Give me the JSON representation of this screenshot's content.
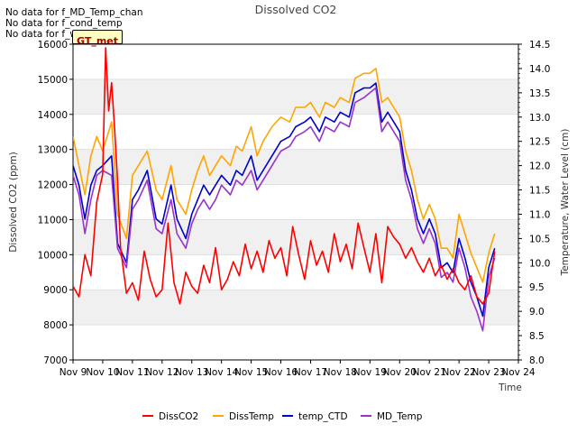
{
  "notes": [
    "No data for f_MD_Temp_chan",
    "No data for f_cond_temp",
    "No data for f_waterT"
  ],
  "badge": {
    "label": "GT_met",
    "bg": "#ffffc0",
    "fg": "#aa0000"
  },
  "chart_data": {
    "type": "line",
    "title": "Dissolved CO2",
    "xlabel": "Time",
    "ylabel_left": "Dissolved CO2 (ppm)",
    "ylabel_right": "Temperature, Water Level (cm)",
    "x_range": [
      9,
      24
    ],
    "x_tick_values": [
      9,
      10,
      11,
      12,
      13,
      14,
      15,
      16,
      17,
      18,
      19,
      20,
      21,
      22,
      23,
      24
    ],
    "x_tick_labels": [
      "Nov 9",
      "Nov 10",
      "Nov 11",
      "Nov 12",
      "Nov 13",
      "Nov 14",
      "Nov 15",
      "Nov 16",
      "Nov 17",
      "Nov 18",
      "Nov 19",
      "Nov 20",
      "Nov 21",
      "Nov 22",
      "Nov 23",
      "Nov 24"
    ],
    "y_left_range": [
      7000,
      16000
    ],
    "y_left_ticks": [
      7000,
      8000,
      9000,
      10000,
      11000,
      12000,
      13000,
      14000,
      15000,
      16000
    ],
    "y_right_range": [
      8.0,
      14.5
    ],
    "y_right_ticks": [
      "8.0",
      "8.5",
      "9.0",
      "9.5",
      "10.0",
      "10.5",
      "11.0",
      "11.5",
      "12.0",
      "12.5",
      "13.0",
      "13.5",
      "14.0",
      "14.5"
    ],
    "grid": "horizontal bands",
    "legend_position": "bottom",
    "series": [
      {
        "name": "DissCO2",
        "axis": "left",
        "color": "#ff0000",
        "x": [
          9.0,
          9.2,
          9.4,
          9.6,
          9.8,
          10.0,
          10.1,
          10.2,
          10.3,
          10.4,
          10.5,
          10.6,
          10.8,
          11.0,
          11.2,
          11.4,
          11.6,
          11.8,
          12.0,
          12.2,
          12.4,
          12.6,
          12.8,
          13.0,
          13.2,
          13.4,
          13.6,
          13.8,
          14.0,
          14.2,
          14.4,
          14.6,
          14.8,
          15.0,
          15.2,
          15.4,
          15.6,
          15.8,
          16.0,
          16.2,
          16.4,
          16.6,
          16.8,
          17.0,
          17.2,
          17.4,
          17.6,
          17.8,
          18.0,
          18.2,
          18.4,
          18.6,
          18.8,
          19.0,
          19.2,
          19.4,
          19.6,
          19.8,
          20.0,
          20.2,
          20.4,
          20.6,
          20.8,
          21.0,
          21.2,
          21.4,
          21.6,
          21.8,
          22.0,
          22.2,
          22.4,
          22.6,
          22.8,
          23.0,
          23.2
        ],
        "values": [
          9100,
          8800,
          10000,
          9400,
          11500,
          12300,
          15900,
          14100,
          14900,
          13600,
          12100,
          10200,
          8900,
          9200,
          8700,
          10100,
          9300,
          8800,
          9000,
          10900,
          9200,
          8600,
          9500,
          9100,
          8900,
          9700,
          9200,
          10200,
          9000,
          9300,
          9800,
          9400,
          10300,
          9600,
          10100,
          9500,
          10400,
          9900,
          10200,
          9400,
          10800,
          10000,
          9300,
          10400,
          9700,
          10100,
          9500,
          10600,
          9800,
          10300,
          9600,
          10900,
          10200,
          9500,
          10600,
          9200,
          10800,
          10500,
          10300,
          9900,
          10200,
          9800,
          9500,
          9900,
          9400,
          9700,
          9300,
          9600,
          9200,
          9000,
          9400,
          8800,
          8600,
          8900,
          10100
        ]
      },
      {
        "name": "DissTemp",
        "axis": "right",
        "color": "#ffa500",
        "x": [
          9.0,
          9.2,
          9.4,
          9.6,
          9.8,
          10.0,
          10.3,
          10.5,
          10.8,
          11.0,
          11.2,
          11.5,
          11.8,
          12.0,
          12.3,
          12.5,
          12.8,
          13.0,
          13.2,
          13.4,
          13.6,
          13.8,
          14.0,
          14.3,
          14.5,
          14.7,
          15.0,
          15.2,
          15.4,
          15.7,
          16.0,
          16.3,
          16.5,
          16.8,
          17.0,
          17.3,
          17.5,
          17.8,
          18.0,
          18.3,
          18.5,
          18.8,
          19.0,
          19.2,
          19.4,
          19.6,
          19.8,
          20.0,
          20.2,
          20.4,
          20.6,
          20.8,
          21.0,
          21.2,
          21.4,
          21.6,
          21.8,
          22.0,
          22.2,
          22.4,
          22.6,
          22.8,
          23.0,
          23.2
        ],
        "values": [
          12.6,
          12.0,
          11.4,
          12.2,
          12.6,
          12.3,
          12.9,
          11.0,
          10.5,
          11.8,
          12.0,
          12.3,
          11.5,
          11.3,
          12.0,
          11.3,
          11.0,
          11.5,
          11.9,
          12.2,
          11.8,
          12.0,
          12.2,
          12.0,
          12.4,
          12.3,
          12.8,
          12.2,
          12.5,
          12.8,
          13.0,
          12.9,
          13.2,
          13.2,
          13.3,
          13.0,
          13.3,
          13.2,
          13.4,
          13.3,
          13.8,
          13.9,
          13.9,
          14.0,
          13.3,
          13.4,
          13.2,
          13.0,
          12.3,
          11.9,
          11.3,
          10.9,
          11.2,
          10.9,
          10.3,
          10.3,
          10.1,
          11.0,
          10.6,
          10.2,
          9.9,
          9.6,
          10.2,
          10.6
        ]
      },
      {
        "name": "temp_CTD",
        "axis": "right",
        "color": "#0000cc",
        "x": [
          9.0,
          9.2,
          9.4,
          9.6,
          9.8,
          10.0,
          10.3,
          10.5,
          10.8,
          11.0,
          11.2,
          11.5,
          11.8,
          12.0,
          12.3,
          12.5,
          12.8,
          13.0,
          13.2,
          13.4,
          13.6,
          13.8,
          14.0,
          14.3,
          14.5,
          14.7,
          15.0,
          15.2,
          15.4,
          15.7,
          16.0,
          16.3,
          16.5,
          16.8,
          17.0,
          17.3,
          17.5,
          17.8,
          18.0,
          18.3,
          18.5,
          18.8,
          19.0,
          19.2,
          19.4,
          19.6,
          19.8,
          20.0,
          20.2,
          20.4,
          20.6,
          20.8,
          21.0,
          21.2,
          21.4,
          21.6,
          21.8,
          22.0,
          22.2,
          22.4,
          22.6,
          22.8,
          23.0,
          23.2
        ],
        "values": [
          12.0,
          11.6,
          10.9,
          11.6,
          11.9,
          12.0,
          12.2,
          10.4,
          10.0,
          11.3,
          11.5,
          11.9,
          10.9,
          10.8,
          11.6,
          10.9,
          10.5,
          11.0,
          11.3,
          11.6,
          11.4,
          11.6,
          11.8,
          11.6,
          11.9,
          11.8,
          12.2,
          11.7,
          11.9,
          12.2,
          12.5,
          12.6,
          12.8,
          12.9,
          13.0,
          12.7,
          13.0,
          12.9,
          13.1,
          13.0,
          13.5,
          13.6,
          13.6,
          13.7,
          12.9,
          13.1,
          12.9,
          12.7,
          11.9,
          11.5,
          10.9,
          10.6,
          10.9,
          10.6,
          9.9,
          10.0,
          9.8,
          10.5,
          10.1,
          9.6,
          9.3,
          8.9,
          9.9,
          10.3
        ]
      },
      {
        "name": "MD_Temp",
        "axis": "right",
        "color": "#9933cc",
        "x": [
          9.0,
          9.2,
          9.4,
          9.6,
          9.8,
          10.0,
          10.3,
          10.5,
          10.8,
          11.0,
          11.2,
          11.5,
          11.8,
          12.0,
          12.3,
          12.5,
          12.8,
          13.0,
          13.2,
          13.4,
          13.6,
          13.8,
          14.0,
          14.3,
          14.5,
          14.7,
          15.0,
          15.2,
          15.4,
          15.7,
          16.0,
          16.3,
          16.5,
          16.8,
          17.0,
          17.3,
          17.5,
          17.8,
          18.0,
          18.3,
          18.5,
          18.8,
          19.0,
          19.2,
          19.4,
          19.6,
          19.8,
          20.0,
          20.2,
          20.4,
          20.6,
          20.8,
          21.0,
          21.2,
          21.4,
          21.6,
          21.8,
          22.0,
          22.2,
          22.4,
          22.6,
          22.8,
          23.0,
          23.2
        ],
        "values": [
          11.8,
          11.4,
          10.6,
          11.3,
          11.8,
          11.9,
          11.8,
          10.3,
          9.9,
          11.1,
          11.3,
          11.7,
          10.7,
          10.6,
          11.3,
          10.6,
          10.3,
          10.8,
          11.1,
          11.3,
          11.1,
          11.3,
          11.6,
          11.4,
          11.7,
          11.6,
          11.9,
          11.5,
          11.7,
          12.0,
          12.3,
          12.4,
          12.6,
          12.7,
          12.8,
          12.5,
          12.8,
          12.7,
          12.9,
          12.8,
          13.3,
          13.4,
          13.5,
          13.6,
          12.7,
          12.9,
          12.7,
          12.5,
          11.7,
          11.3,
          10.7,
          10.4,
          10.7,
          10.4,
          9.7,
          9.8,
          9.6,
          10.3,
          9.9,
          9.3,
          9.0,
          8.6,
          9.7,
          10.1
        ]
      }
    ]
  }
}
